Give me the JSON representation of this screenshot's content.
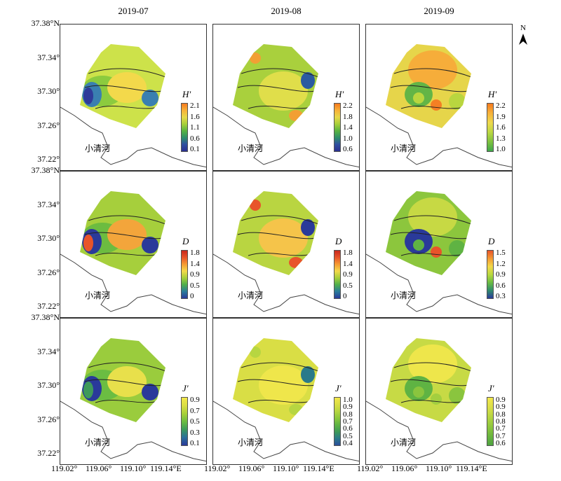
{
  "column_titles": [
    "2019-07",
    "2019-08",
    "2019-09"
  ],
  "lat_labels": [
    "37.38°N",
    "37.34°",
    "37.30°",
    "37.26°",
    "37.22°"
  ],
  "lon_labels": [
    "119.02°",
    "119.06°",
    "119.10°",
    "119.14°E"
  ],
  "river_label": "小清河",
  "north_label": "N",
  "panels": [
    {
      "title": "H′",
      "ticks": [
        "2.1",
        "1.6",
        "1.1",
        "0.6",
        "0.1"
      ],
      "palette": "hbar"
    },
    {
      "title": "H′",
      "ticks": [
        "2.2",
        "1.8",
        "1.4",
        "1.0",
        "0.6"
      ],
      "palette": "hbar"
    },
    {
      "title": "H′",
      "ticks": [
        "2.2",
        "1.9",
        "1.6",
        "1.3",
        "1.0"
      ],
      "palette": "hbar3"
    },
    {
      "title": "D",
      "ticks": [
        "1.8",
        "1.4",
        "0.9",
        "0.5",
        "0"
      ],
      "palette": "dbar"
    },
    {
      "title": "D",
      "ticks": [
        "1.8",
        "1.4",
        "0.9",
        "0.5",
        "0"
      ],
      "palette": "dbar"
    },
    {
      "title": "D",
      "ticks": [
        "1.5",
        "1.2",
        "0.9",
        "0.6",
        "0.3"
      ],
      "palette": "dbar3"
    },
    {
      "title": "J′",
      "ticks": [
        "0.9",
        "0.7",
        "0.5",
        "0.3",
        "0.1"
      ],
      "palette": "jbar"
    },
    {
      "title": "J′",
      "ticks": [
        "1.0",
        "0.9",
        "0.8",
        "0.7",
        "0.6",
        "0.5",
        "0.4"
      ],
      "palette": "jbar2"
    },
    {
      "title": "J′",
      "ticks": [
        "0.9",
        "0.9",
        "0.8",
        "0.8",
        "0.7",
        "0.7",
        "0.6"
      ],
      "palette": "jbar3"
    }
  ]
}
